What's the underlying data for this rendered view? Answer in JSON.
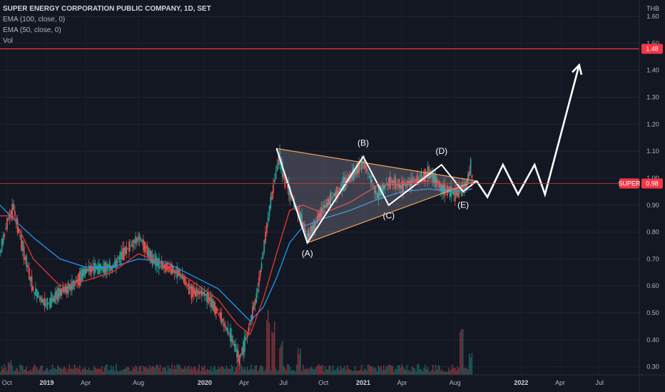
{
  "header": {
    "title": "SUPER ENERGY CORPORATION PUBLIC COMPANY, 1D, SET",
    "ema100": "EMA (100, close, 0)",
    "ema50": "EMA (50, close, 0)",
    "vol": "Vol",
    "currency": "THB"
  },
  "colors": {
    "background": "#131722",
    "up_candle": "#26a69a",
    "down_candle": "#ef5350",
    "ema100": "#2196f3",
    "ema50": "#e53935",
    "resistance": "#f23645",
    "triangle_edge": "#f7a35c",
    "projection": "#ffffff"
  },
  "chart_data": {
    "type": "candlestick",
    "y_axis": {
      "ylim": [
        0.27,
        1.64
      ],
      "ticks": [
        "0.30",
        "0.40",
        "0.50",
        "0.60",
        "0.70",
        "0.80",
        "0.90",
        "1.00",
        "1.10",
        "1.20",
        "1.30",
        "1.40",
        "1.50",
        "1.60"
      ]
    },
    "x_axis": {
      "range": [
        "2018-09-15",
        "2022-10-01"
      ],
      "ticks": [
        {
          "label": "Oct",
          "date": "2018-10-01",
          "year": false
        },
        {
          "label": "2019",
          "date": "2019-01-01",
          "year": true
        },
        {
          "label": "Apr",
          "date": "2019-04-01",
          "year": false
        },
        {
          "label": "Aug",
          "date": "2019-08-01",
          "year": false
        },
        {
          "label": "2020",
          "date": "2020-01-01",
          "year": true
        },
        {
          "label": "Apr",
          "date": "2020-04-01",
          "year": false
        },
        {
          "label": "Jul",
          "date": "2020-07-01",
          "year": false
        },
        {
          "label": "Oct",
          "date": "2020-10-01",
          "year": false
        },
        {
          "label": "2021",
          "date": "2021-01-01",
          "year": true
        },
        {
          "label": "Apr",
          "date": "2021-04-01",
          "year": false
        },
        {
          "label": "Aug",
          "date": "2021-08-01",
          "year": false
        },
        {
          "label": "2022",
          "date": "2022-01-01",
          "year": true
        },
        {
          "label": "Apr",
          "date": "2022-04-01",
          "year": false
        },
        {
          "label": "Jul",
          "date": "2022-07-01",
          "year": false
        }
      ]
    },
    "price_path": [
      [
        "2018-09-15",
        0.73
      ],
      [
        "2018-10-01",
        0.84
      ],
      [
        "2018-10-15",
        0.89
      ],
      [
        "2018-11-01",
        0.77
      ],
      [
        "2018-12-01",
        0.58
      ],
      [
        "2019-01-01",
        0.53
      ],
      [
        "2019-02-01",
        0.58
      ],
      [
        "2019-03-01",
        0.6
      ],
      [
        "2019-04-01",
        0.66
      ],
      [
        "2019-06-01",
        0.67
      ],
      [
        "2019-07-01",
        0.73
      ],
      [
        "2019-08-01",
        0.78
      ],
      [
        "2019-09-01",
        0.7
      ],
      [
        "2019-10-01",
        0.67
      ],
      [
        "2019-11-01",
        0.65
      ],
      [
        "2019-12-01",
        0.58
      ],
      [
        "2020-01-01",
        0.57
      ],
      [
        "2020-02-01",
        0.5
      ],
      [
        "2020-03-01",
        0.41
      ],
      [
        "2020-03-20",
        0.33
      ],
      [
        "2020-04-01",
        0.38
      ],
      [
        "2020-05-01",
        0.58
      ],
      [
        "2020-06-01",
        0.92
      ],
      [
        "2020-06-20",
        1.08
      ],
      [
        "2020-07-01",
        1.0
      ],
      [
        "2020-08-01",
        0.88
      ],
      [
        "2020-08-25",
        0.78
      ],
      [
        "2020-10-01",
        0.89
      ],
      [
        "2020-11-01",
        0.95
      ],
      [
        "2021-01-01",
        1.06
      ],
      [
        "2021-02-01",
        0.94
      ],
      [
        "2021-03-01",
        0.99
      ],
      [
        "2021-04-01",
        0.97
      ],
      [
        "2021-05-01",
        0.99
      ],
      [
        "2021-06-01",
        1.02
      ],
      [
        "2021-07-01",
        0.96
      ],
      [
        "2021-08-01",
        0.94
      ],
      [
        "2021-08-25",
        0.97
      ],
      [
        "2021-09-05",
        1.04
      ],
      [
        "2021-09-10",
        0.98
      ]
    ],
    "ema50": [
      [
        "2018-09-15",
        0.86
      ],
      [
        "2018-10-15",
        0.86
      ],
      [
        "2018-12-01",
        0.7
      ],
      [
        "2019-02-01",
        0.6
      ],
      [
        "2019-04-01",
        0.62
      ],
      [
        "2019-06-01",
        0.65
      ],
      [
        "2019-08-01",
        0.72
      ],
      [
        "2019-10-01",
        0.68
      ],
      [
        "2019-12-01",
        0.62
      ],
      [
        "2020-02-01",
        0.55
      ],
      [
        "2020-03-15",
        0.46
      ],
      [
        "2020-04-15",
        0.42
      ],
      [
        "2020-05-15",
        0.55
      ],
      [
        "2020-06-15",
        0.72
      ],
      [
        "2020-07-15",
        0.88
      ],
      [
        "2020-08-15",
        0.9
      ],
      [
        "2020-10-01",
        0.87
      ],
      [
        "2020-12-01",
        0.91
      ],
      [
        "2021-02-01",
        0.97
      ],
      [
        "2021-04-01",
        0.98
      ],
      [
        "2021-06-01",
        0.99
      ],
      [
        "2021-08-01",
        0.96
      ],
      [
        "2021-09-10",
        0.97
      ]
    ],
    "ema100": [
      [
        "2018-09-15",
        0.9
      ],
      [
        "2018-10-15",
        0.85
      ],
      [
        "2018-12-01",
        0.78
      ],
      [
        "2019-02-01",
        0.7
      ],
      [
        "2019-04-01",
        0.67
      ],
      [
        "2019-06-01",
        0.67
      ],
      [
        "2019-08-01",
        0.7
      ],
      [
        "2019-10-01",
        0.69
      ],
      [
        "2019-12-01",
        0.64
      ],
      [
        "2020-02-01",
        0.59
      ],
      [
        "2020-03-15",
        0.52
      ],
      [
        "2020-04-15",
        0.47
      ],
      [
        "2020-05-15",
        0.52
      ],
      [
        "2020-06-15",
        0.63
      ],
      [
        "2020-07-15",
        0.76
      ],
      [
        "2020-08-15",
        0.82
      ],
      [
        "2020-10-01",
        0.85
      ],
      [
        "2020-12-01",
        0.88
      ],
      [
        "2021-02-01",
        0.92
      ],
      [
        "2021-04-01",
        0.95
      ],
      [
        "2021-06-01",
        0.96
      ],
      [
        "2021-08-01",
        0.95
      ],
      [
        "2021-09-10",
        0.96
      ]
    ],
    "volume_spikes": [
      [
        "2018-10-05",
        0.2
      ],
      [
        "2020-05-25",
        0.9
      ],
      [
        "2020-06-05",
        0.7
      ],
      [
        "2020-06-25",
        0.45
      ],
      [
        "2020-08-05",
        0.35
      ],
      [
        "2021-08-15",
        0.7
      ],
      [
        "2021-09-05",
        0.3
      ]
    ],
    "resistance": {
      "value": 1.48,
      "label": "1.48"
    },
    "last_price": {
      "value": 0.98,
      "symbol": "SUPER",
      "label": "0.98"
    },
    "triangle": {
      "points": [
        [
          "2020-06-15",
          1.11
        ],
        [
          "2020-08-25",
          0.76
        ],
        [
          "2021-09-20",
          0.99
        ]
      ]
    },
    "waves": {
      "points": [
        [
          "2020-06-15",
          1.11
        ],
        [
          "2020-08-25",
          0.76
        ],
        [
          "2021-01-01",
          1.08
        ],
        [
          "2021-03-01",
          0.9
        ],
        [
          "2021-07-01",
          1.05
        ],
        [
          "2021-08-20",
          0.95
        ],
        [
          "2021-09-20",
          0.99
        ]
      ],
      "labels": [
        {
          "text": "(A)",
          "date": "2020-08-25",
          "price": 0.71
        },
        {
          "text": "(B)",
          "date": "2021-01-01",
          "price": 1.12
        },
        {
          "text": "(C)",
          "date": "2021-03-01",
          "price": 0.85
        },
        {
          "text": "(D)",
          "date": "2021-07-01",
          "price": 1.09
        },
        {
          "text": "(E)",
          "date": "2021-08-20",
          "price": 0.89
        }
      ]
    },
    "projection": {
      "points": [
        [
          "2021-09-20",
          0.99
        ],
        [
          "2021-10-15",
          0.93
        ],
        [
          "2021-11-20",
          1.05
        ],
        [
          "2021-12-25",
          0.94
        ],
        [
          "2022-02-01",
          1.05
        ],
        [
          "2022-02-25",
          0.94
        ],
        [
          "2022-05-15",
          1.42
        ]
      ]
    }
  }
}
